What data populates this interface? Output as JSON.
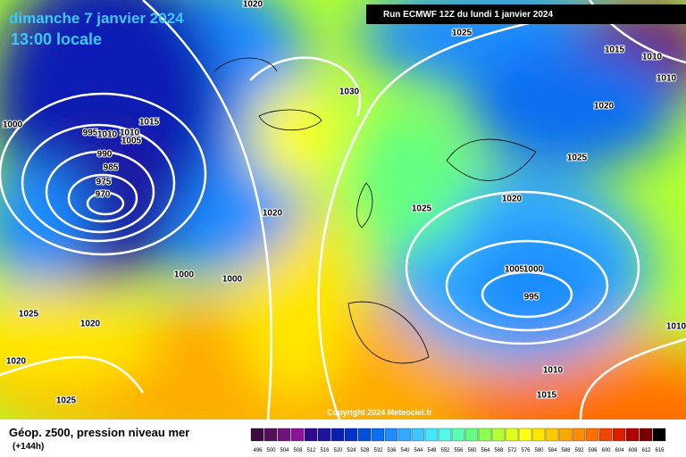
{
  "header": {
    "date_line": "dimanche 7 janvier 2024",
    "time_line": "13:00 locale",
    "run_info": "Run ECMWF 12Z du lundi 1 janvier 2024"
  },
  "map": {
    "isobar_labels": [
      1020,
      1025,
      1015,
      1010,
      1010,
      1030,
      1020,
      1000,
      1015,
      995,
      1010,
      1010,
      1005,
      990,
      985,
      975,
      970,
      1025,
      1020,
      1025,
      1020,
      1000,
      1000,
      1005,
      1000,
      995,
      1025,
      1020,
      1010,
      1020,
      1010,
      1015,
      1025
    ],
    "copyright": "Copyright 2024 Meteociel.fr"
  },
  "legend": {
    "title": "Géop. z500, pression niveau mer",
    "subtitle": "(+144h)",
    "values": [
      496,
      500,
      504,
      508,
      512,
      516,
      520,
      524,
      528,
      532,
      536,
      540,
      544,
      548,
      552,
      556,
      560,
      564,
      568,
      572,
      576,
      580,
      584,
      588,
      592,
      596,
      600,
      604,
      608,
      612,
      616
    ],
    "colors": [
      "#3c0a3c",
      "#55105a",
      "#6e1478",
      "#8c1496",
      "#2d0a8c",
      "#1e14a0",
      "#0a1eb4",
      "#0032c8",
      "#0050dc",
      "#0a6ef0",
      "#1e8cff",
      "#32aaff",
      "#3cc8ff",
      "#46e6ff",
      "#50fae6",
      "#5affb4",
      "#64ff82",
      "#8cff50",
      "#b4ff32",
      "#dcff1e",
      "#ffff14",
      "#ffe600",
      "#ffc800",
      "#ffaa00",
      "#ff8c00",
      "#ff6e00",
      "#f04600",
      "#dc1e00",
      "#b40000",
      "#780000",
      "#000000"
    ]
  }
}
